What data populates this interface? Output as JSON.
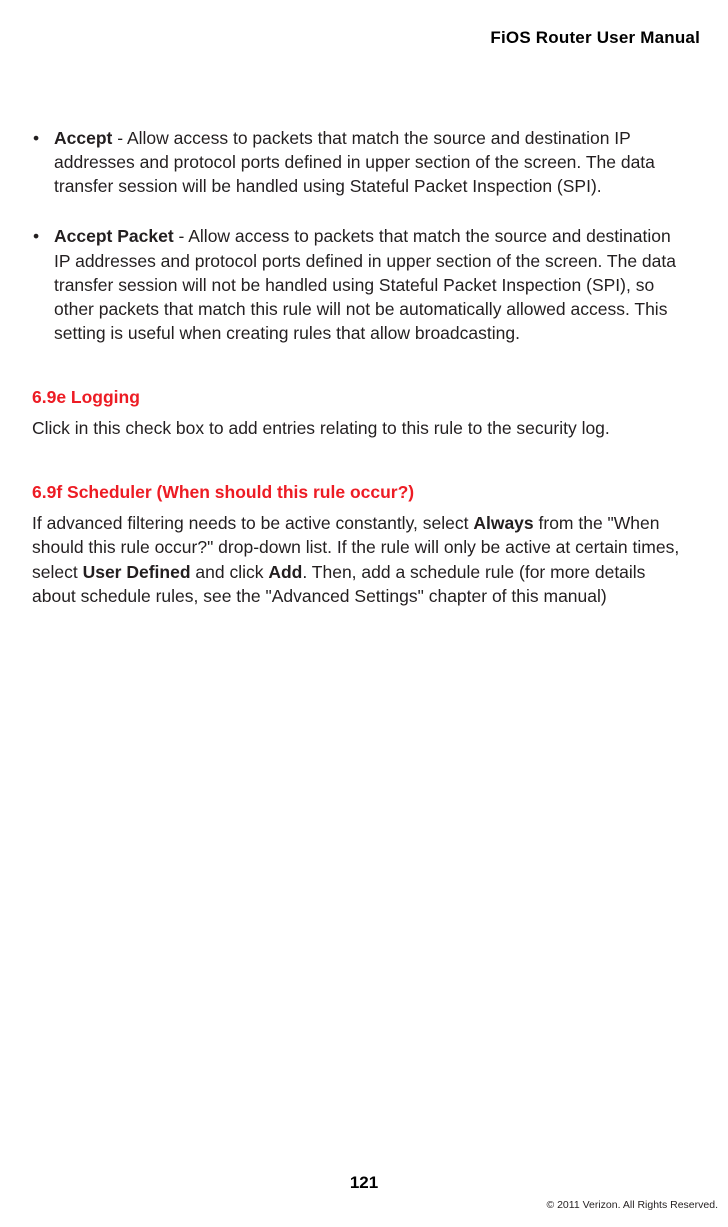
{
  "header": {
    "title": "FiOS Router User Manual"
  },
  "bullets": [
    {
      "marker": "•",
      "term": "Accept",
      "desc": " - Allow access to packets that match the source and destination IP addresses and protocol ports defined in upper section of the screen. The data transfer session will be handled using Stateful Packet Inspection (SPI)."
    },
    {
      "marker": "•",
      "term": "Accept Packet",
      "desc": " - Allow access to packets that match the source and destination IP addresses and protocol ports defined in upper section of the screen. The data transfer session will not be handled using Stateful Packet Inspection (SPI), so other packets that match this rule will not be automatically allowed access. This setting is useful when creating rules that allow broadcasting."
    }
  ],
  "sections": [
    {
      "heading": "6.9e  Logging",
      "paragraph_parts": [
        {
          "text": "Click in this check box to add entries relating to this rule to the security log.",
          "bold": false
        }
      ]
    },
    {
      "heading": "6.9f  Scheduler (When should this rule occur?)",
      "paragraph_parts": [
        {
          "text": "If advanced filtering needs to be active constantly, select ",
          "bold": false
        },
        {
          "text": "Always",
          "bold": true
        },
        {
          "text": " from the \"When should this rule occur?\" drop-down list. If the rule will only be active at certain times, select ",
          "bold": false
        },
        {
          "text": "User Defined",
          "bold": true
        },
        {
          "text": " and click ",
          "bold": false
        },
        {
          "text": "Add",
          "bold": true
        },
        {
          "text": ". Then, add a schedule rule (for more details about schedule rules, see the \"Advanced Settings\" chapter of this manual)",
          "bold": false
        }
      ]
    }
  ],
  "footer": {
    "pageNumber": "121",
    "copyright": "© 2011 Verizon. All Rights Reserved."
  },
  "styling": {
    "heading_color": "#ed1c24",
    "body_color": "#231f20",
    "background_color": "#ffffff",
    "body_fontsize": 17.5,
    "heading_fontsize": 17.5,
    "header_fontsize": 17,
    "pagewidth": 728,
    "pageheight": 1227
  }
}
